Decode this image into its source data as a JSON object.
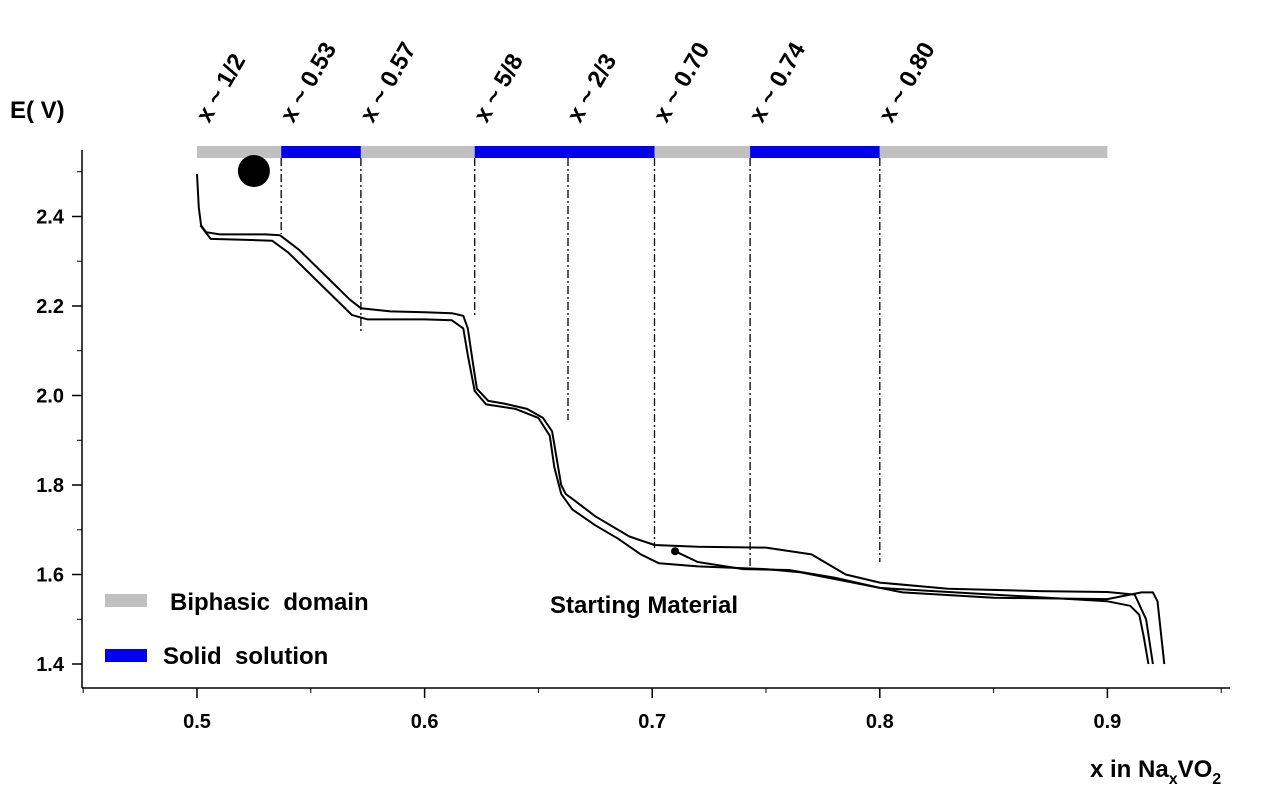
{
  "colors": {
    "biphasic": "#c0c0c0",
    "solid_solution": "#0000ee",
    "curve": "#000000",
    "axis": "#000000"
  },
  "chart_data": {
    "type": "line",
    "ylabel": "E( V)",
    "xlabel": {
      "prefix": "x in Na",
      "sub1": "x",
      "mid": "VO",
      "sub2": "2"
    },
    "xlim": [
      0.45,
      0.95
    ],
    "ylim": [
      1.37,
      2.55
    ],
    "x_ticks": [
      "0.5",
      "0.6",
      "0.7",
      "0.8",
      "0.9"
    ],
    "x_tick_values": [
      0.5,
      0.6,
      0.7,
      0.8,
      0.9
    ],
    "y_ticks": [
      "1.4",
      "1.6",
      "1.8",
      "2.0",
      "2.2",
      "2.4"
    ],
    "y_tick_values": [
      1.4,
      1.6,
      1.8,
      2.0,
      2.2,
      2.4
    ],
    "composition_labels": [
      {
        "text": "x ~ 1/2",
        "x": 0.5
      },
      {
        "text": "x ~ 0.53",
        "x": 0.537
      },
      {
        "text": "x ~ 0.57",
        "x": 0.572
      },
      {
        "text": "x ~ 5/8",
        "x": 0.622
      },
      {
        "text": "x ~ 2/3",
        "x": 0.663
      },
      {
        "text": "x ~ 0.70",
        "x": 0.701
      },
      {
        "text": "x ~ 0.74",
        "x": 0.743
      },
      {
        "text": "x ~ 0.80",
        "x": 0.8
      }
    ],
    "domains": [
      {
        "type": "Biphasic",
        "from": 0.5,
        "to": 0.537
      },
      {
        "type": "Solid",
        "from": 0.537,
        "to": 0.572
      },
      {
        "type": "Biphasic",
        "from": 0.572,
        "to": 0.622
      },
      {
        "type": "Solid",
        "from": 0.622,
        "to": 0.701
      },
      {
        "type": "Biphasic",
        "from": 0.701,
        "to": 0.743
      },
      {
        "type": "Solid",
        "from": 0.743,
        "to": 0.8
      },
      {
        "type": "Biphasic",
        "from": 0.8,
        "to": 0.9
      }
    ],
    "phase_lines": [
      0.537,
      0.572,
      0.622,
      0.663,
      0.701,
      0.743,
      0.8
    ],
    "legend": [
      {
        "label": "Biphasic  domain",
        "color": "#c0c0c0"
      },
      {
        "label": "Solid  solution",
        "color": "#0000ee"
      }
    ],
    "annotation": "Starting Material",
    "start_point": {
      "x": 0.71,
      "y": 1.652
    },
    "marker_x": 0.525,
    "series": [
      {
        "x": [
          0.5,
          0.5008,
          0.5018,
          0.504,
          0.51,
          0.52,
          0.53,
          0.5365,
          0.545,
          0.557,
          0.567,
          0.572,
          0.585,
          0.6,
          0.612,
          0.617,
          0.619,
          0.621,
          0.623,
          0.628,
          0.635,
          0.645,
          0.652,
          0.656,
          0.658,
          0.66,
          0.662,
          0.666,
          0.675,
          0.69,
          0.701,
          0.72,
          0.75,
          0.77,
          0.785,
          0.8,
          0.83,
          0.87,
          0.9,
          0.912,
          0.917,
          0.92
        ],
        "y": [
          2.495,
          2.42,
          2.38,
          2.365,
          2.36,
          2.36,
          2.36,
          2.358,
          2.325,
          2.265,
          2.215,
          2.195,
          2.188,
          2.186,
          2.184,
          2.178,
          2.15,
          2.08,
          2.015,
          1.988,
          1.982,
          1.97,
          1.95,
          1.92,
          1.86,
          1.8,
          1.78,
          1.765,
          1.73,
          1.685,
          1.666,
          1.662,
          1.66,
          1.645,
          1.6,
          1.582,
          1.568,
          1.563,
          1.561,
          1.555,
          1.5,
          1.4
        ]
      },
      {
        "x": [
          0.5015,
          0.506,
          0.52,
          0.533,
          0.54,
          0.555,
          0.568,
          0.575,
          0.6,
          0.612,
          0.617,
          0.619,
          0.622,
          0.627,
          0.64,
          0.65,
          0.655,
          0.657,
          0.66,
          0.665,
          0.675,
          0.685,
          0.695,
          0.703,
          0.72,
          0.75,
          0.765,
          0.79,
          0.81,
          0.85,
          0.9,
          0.915,
          0.92,
          0.922,
          0.9235,
          0.925
        ],
        "y": [
          2.38,
          2.35,
          2.348,
          2.346,
          2.32,
          2.245,
          2.18,
          2.17,
          2.17,
          2.168,
          2.15,
          2.09,
          2.01,
          1.98,
          1.97,
          1.95,
          1.91,
          1.84,
          1.78,
          1.745,
          1.71,
          1.68,
          1.645,
          1.625,
          1.618,
          1.612,
          1.605,
          1.58,
          1.56,
          1.548,
          1.545,
          1.56,
          1.56,
          1.54,
          1.47,
          1.4
        ]
      },
      {
        "x": [
          0.71,
          0.72,
          0.74,
          0.76,
          0.78,
          0.8,
          0.85,
          0.9,
          0.91,
          0.914,
          0.916,
          0.918
        ],
        "y": [
          1.652,
          1.628,
          1.612,
          1.61,
          1.593,
          1.57,
          1.555,
          1.54,
          1.53,
          1.51,
          1.46,
          1.4
        ]
      }
    ]
  }
}
